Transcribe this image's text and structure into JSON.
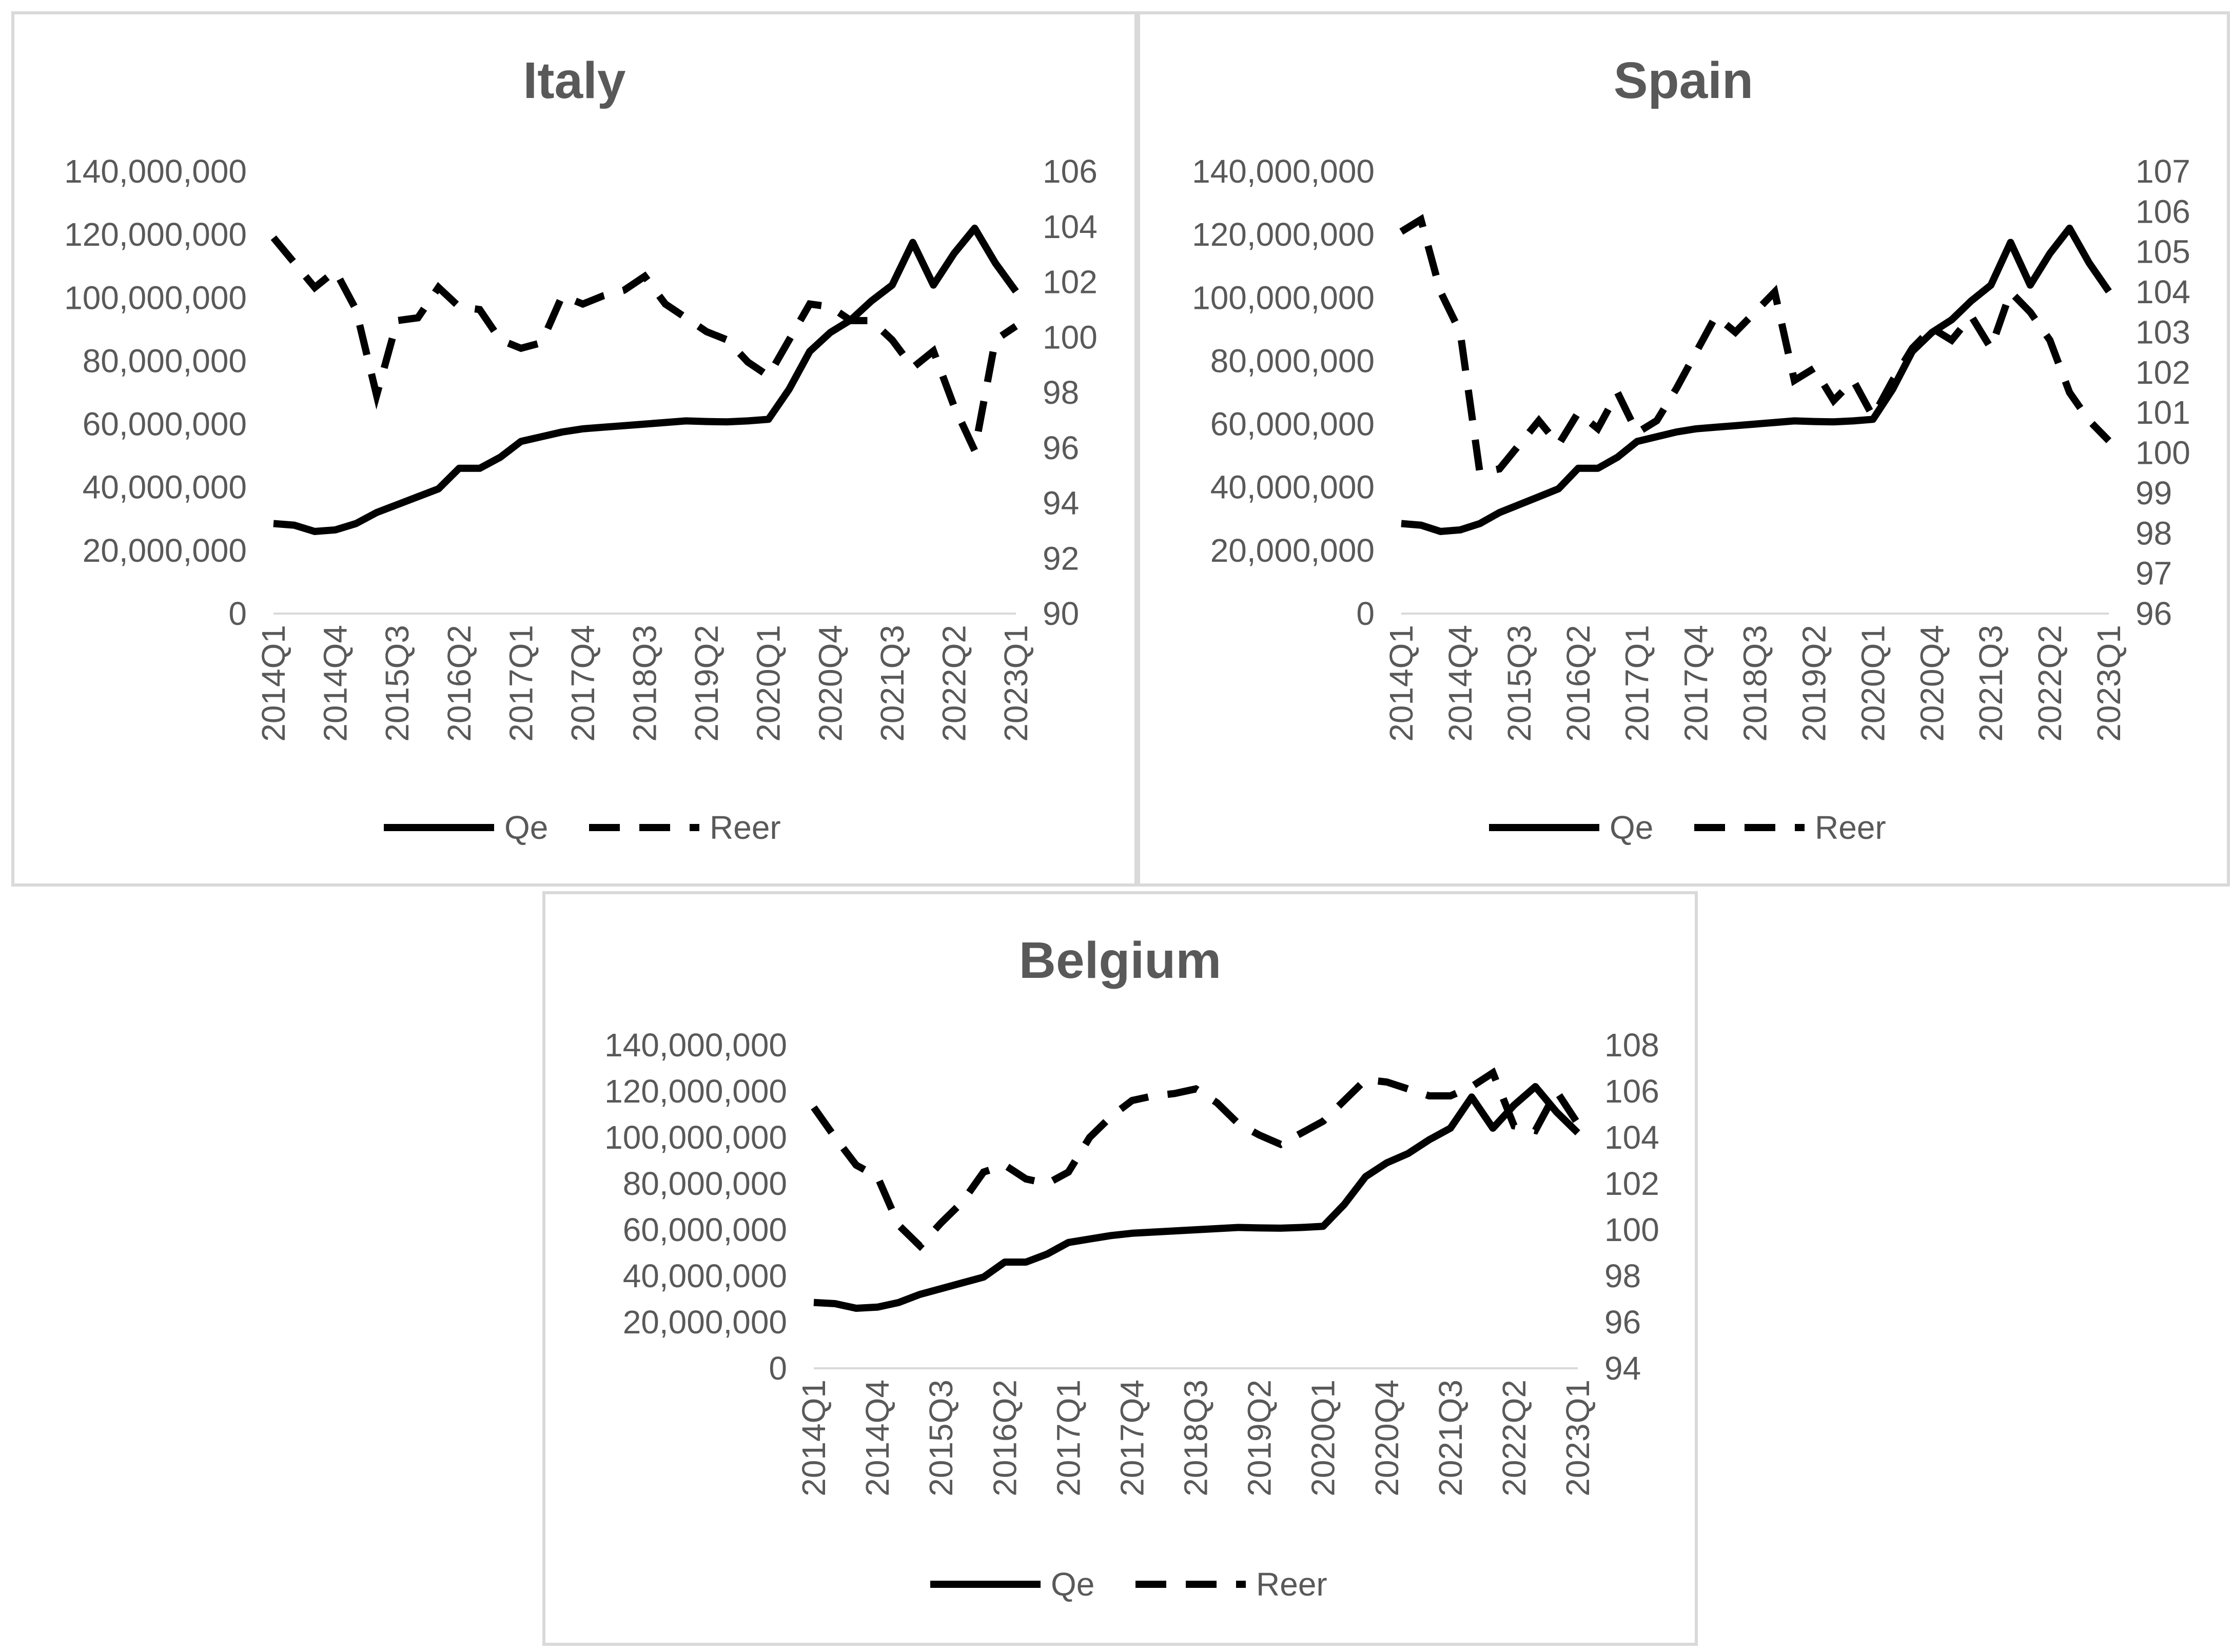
{
  "chart_data": [
    {
      "type": "line",
      "title": "Italy",
      "x": [
        "2014Q1",
        "2014Q2",
        "2014Q3",
        "2014Q4",
        "2015Q1",
        "2015Q2",
        "2015Q3",
        "2015Q4",
        "2016Q1",
        "2016Q2",
        "2016Q3",
        "2016Q4",
        "2017Q1",
        "2017Q2",
        "2017Q3",
        "2017Q4",
        "2018Q1",
        "2018Q2",
        "2018Q3",
        "2018Q4",
        "2019Q1",
        "2019Q2",
        "2019Q3",
        "2019Q4",
        "2020Q1",
        "2020Q2",
        "2020Q3",
        "2020Q4",
        "2021Q1",
        "2021Q2",
        "2021Q3",
        "2021Q4",
        "2022Q1",
        "2022Q2",
        "2022Q3",
        "2022Q4",
        "2023Q1"
      ],
      "x_tick_labels": [
        "2014Q1",
        "2014Q4",
        "2015Q3",
        "2016Q2",
        "2017Q1",
        "2017Q4",
        "2018Q3",
        "2019Q2",
        "2020Q1",
        "2020Q4",
        "2021Q3",
        "2022Q2",
        "2023Q1"
      ],
      "y_ticks": [
        "0",
        "20,000,000",
        "40,000,000",
        "60,000,000",
        "80,000,000",
        "100,000,000",
        "120,000,000",
        "140,000,000"
      ],
      "y_ticks_right": [
        "90",
        "92",
        "94",
        "96",
        "98",
        "100",
        "102",
        "104",
        "106"
      ],
      "ylim": [
        0,
        140000000
      ],
      "ylim_right": [
        90,
        106
      ],
      "legend_position": "bottom",
      "grid": false,
      "series": [
        {
          "name": "Qe",
          "axis": "left",
          "style": "solid",
          "values": [
            28500000,
            28000000,
            26000000,
            26500000,
            28500000,
            32000000,
            34500000,
            37000000,
            39500000,
            46000000,
            46000000,
            49500000,
            54500000,
            56000000,
            57500000,
            58500000,
            59000000,
            59500000,
            60000000,
            60500000,
            61000000,
            60800000,
            60700000,
            61000000,
            61500000,
            71000000,
            83000000,
            89000000,
            93000000,
            99000000,
            104000000,
            117500000,
            104000000,
            114000000,
            122000000,
            111000000,
            102000000
          ]
        },
        {
          "name": "Reer",
          "axis": "right",
          "style": "dashed",
          "values": [
            103.6,
            102.7,
            101.8,
            102.4,
            101.0,
            97.9,
            100.6,
            100.7,
            101.8,
            101.1,
            101.0,
            99.9,
            99.6,
            99.8,
            101.5,
            101.2,
            101.5,
            101.7,
            102.2,
            101.2,
            100.7,
            100.2,
            99.9,
            99.1,
            98.6,
            99.9,
            101.2,
            101.1,
            100.6,
            100.6,
            99.9,
            98.9,
            99.5,
            97.5,
            95.9,
            99.9,
            100.4
          ]
        }
      ]
    },
    {
      "type": "line",
      "title": "Spain",
      "x": [
        "2014Q1",
        "2014Q2",
        "2014Q3",
        "2014Q4",
        "2015Q1",
        "2015Q2",
        "2015Q3",
        "2015Q4",
        "2016Q1",
        "2016Q2",
        "2016Q3",
        "2016Q4",
        "2017Q1",
        "2017Q2",
        "2017Q3",
        "2017Q4",
        "2018Q1",
        "2018Q2",
        "2018Q3",
        "2018Q4",
        "2019Q1",
        "2019Q2",
        "2019Q3",
        "2019Q4",
        "2020Q1",
        "2020Q2",
        "2020Q3",
        "2020Q4",
        "2021Q1",
        "2021Q2",
        "2021Q3",
        "2021Q4",
        "2022Q1",
        "2022Q2",
        "2022Q3",
        "2022Q4",
        "2023Q1"
      ],
      "x_tick_labels": [
        "2014Q1",
        "2014Q4",
        "2015Q3",
        "2016Q2",
        "2017Q1",
        "2017Q4",
        "2018Q3",
        "2019Q2",
        "2020Q1",
        "2020Q4",
        "2021Q3",
        "2022Q2",
        "2023Q1"
      ],
      "y_ticks": [
        "0",
        "20,000,000",
        "40,000,000",
        "60,000,000",
        "80,000,000",
        "100,000,000",
        "120,000,000",
        "140,000,000"
      ],
      "y_ticks_right": [
        "96",
        "97",
        "98",
        "99",
        "100",
        "101",
        "102",
        "103",
        "104",
        "105",
        "106",
        "107"
      ],
      "ylim": [
        0,
        140000000
      ],
      "ylim_right": [
        96,
        107
      ],
      "legend_position": "bottom",
      "grid": false,
      "series": [
        {
          "name": "Qe",
          "axis": "left",
          "style": "solid",
          "values": [
            28500000,
            28000000,
            26000000,
            26500000,
            28500000,
            32000000,
            34500000,
            37000000,
            39500000,
            46000000,
            46000000,
            49500000,
            54500000,
            56000000,
            57500000,
            58500000,
            59000000,
            59500000,
            60000000,
            60500000,
            61000000,
            60800000,
            60700000,
            61000000,
            61500000,
            71000000,
            83000000,
            89000000,
            93000000,
            99000000,
            104000000,
            117500000,
            104000000,
            114000000,
            122000000,
            111000000,
            102000000
          ]
        },
        {
          "name": "Reer",
          "axis": "right",
          "style": "dashed",
          "values": [
            105.5,
            105.8,
            104.0,
            103.0,
            99.5,
            99.6,
            100.2,
            100.8,
            100.2,
            101.0,
            100.6,
            101.5,
            100.5,
            100.8,
            101.6,
            102.5,
            103.4,
            103.0,
            103.5,
            104.0,
            101.8,
            102.1,
            101.3,
            101.8,
            100.9,
            101.8,
            102.6,
            103.1,
            102.8,
            103.4,
            102.6,
            104.0,
            103.5,
            102.8,
            101.5,
            100.8,
            100.3
          ]
        }
      ]
    },
    {
      "type": "line",
      "title": "Belgium",
      "x": [
        "2014Q1",
        "2014Q2",
        "2014Q3",
        "2014Q4",
        "2015Q1",
        "2015Q2",
        "2015Q3",
        "2015Q4",
        "2016Q1",
        "2016Q2",
        "2016Q3",
        "2016Q4",
        "2017Q1",
        "2017Q2",
        "2017Q3",
        "2017Q4",
        "2018Q1",
        "2018Q2",
        "2018Q3",
        "2018Q4",
        "2019Q1",
        "2019Q2",
        "2019Q3",
        "2019Q4",
        "2020Q1",
        "2020Q2",
        "2020Q3",
        "2020Q4",
        "2021Q1",
        "2021Q2",
        "2021Q3",
        "2021Q4",
        "2022Q1",
        "2022Q2",
        "2022Q3",
        "2022Q4",
        "2023Q1"
      ],
      "x_tick_labels": [
        "2014Q1",
        "2014Q4",
        "2015Q3",
        "2016Q2",
        "2017Q1",
        "2017Q4",
        "2018Q3",
        "2019Q2",
        "2020Q1",
        "2020Q4",
        "2021Q3",
        "2022Q2",
        "2023Q1"
      ],
      "y_ticks": [
        "0",
        "20,000,000",
        "40,000,000",
        "60,000,000",
        "80,000,000",
        "100,000,000",
        "120,000,000",
        "140,000,000"
      ],
      "y_ticks_right": [
        "94",
        "96",
        "98",
        "100",
        "102",
        "104",
        "106",
        "108"
      ],
      "ylim": [
        0,
        140000000
      ],
      "ylim_right": [
        94,
        108
      ],
      "legend_position": "bottom",
      "grid": false,
      "series": [
        {
          "name": "Qe",
          "axis": "left",
          "style": "solid",
          "values": [
            28500000,
            28000000,
            26000000,
            26500000,
            28500000,
            32000000,
            34500000,
            37000000,
            39500000,
            46000000,
            46000000,
            49500000,
            54500000,
            56000000,
            57500000,
            58500000,
            59000000,
            59500000,
            60000000,
            60500000,
            61000000,
            60800000,
            60700000,
            61000000,
            61500000,
            71000000,
            83000000,
            89000000,
            93000000,
            99000000,
            104000000,
            117500000,
            104000000,
            114000000,
            122000000,
            111000000,
            102000000
          ]
        },
        {
          "name": "Reer",
          "axis": "right",
          "style": "dashed",
          "values": [
            105.3,
            104.0,
            102.8,
            102.3,
            100.2,
            99.3,
            100.3,
            101.2,
            102.5,
            102.8,
            102.2,
            102.0,
            102.5,
            104.0,
            104.9,
            105.6,
            105.8,
            105.9,
            106.1,
            105.5,
            104.6,
            104.1,
            103.7,
            104.2,
            104.7,
            105.6,
            106.5,
            106.4,
            106.1,
            105.8,
            105.8,
            106.2,
            106.8,
            104.5,
            104.3,
            106.0,
            104.6
          ]
        }
      ]
    }
  ]
}
